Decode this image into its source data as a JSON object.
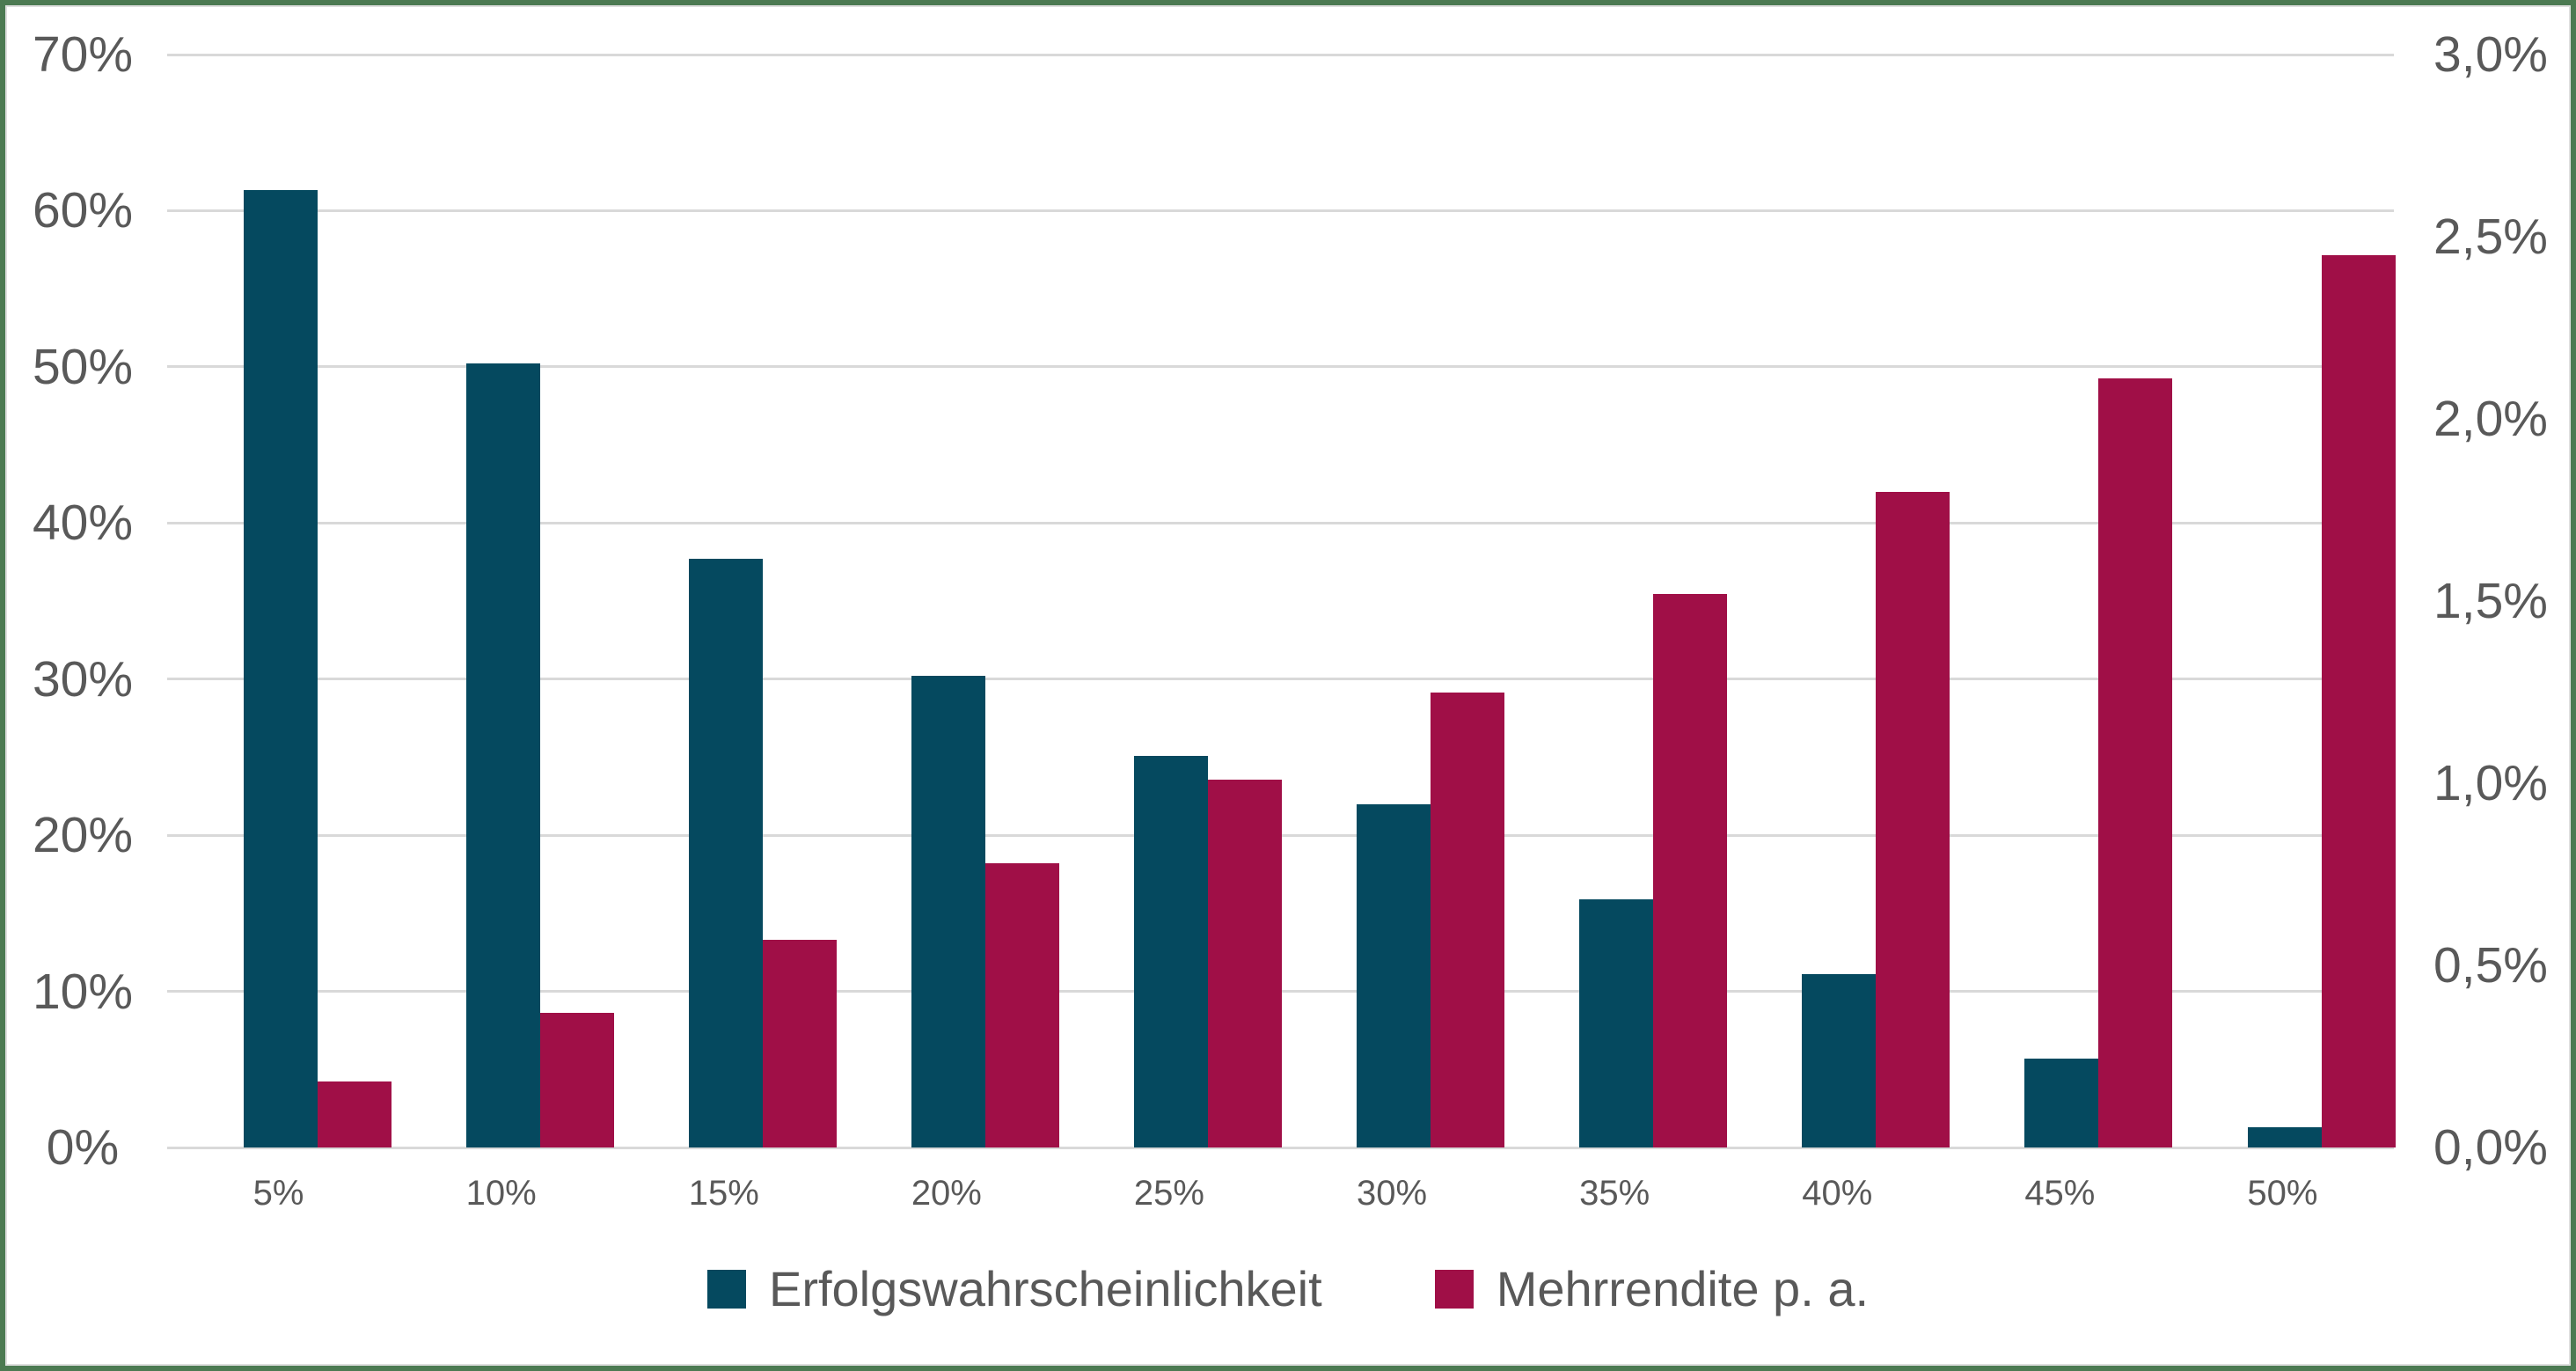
{
  "colors": {
    "series_blue": "#05495F",
    "series_red": "#A00F47",
    "frame_green": "#4C7A52",
    "gridline": "#D9D9D9",
    "axis_text": "#595959",
    "background": "#FFFFFF"
  },
  "chart_data": {
    "type": "bar",
    "title": "",
    "xlabel": "",
    "ylabel_left": "",
    "ylabel_right": "",
    "categories": [
      "5%",
      "10%",
      "15%",
      "20%",
      "25%",
      "30%",
      "35%",
      "40%",
      "45%",
      "50%"
    ],
    "series": [
      {
        "name": "Erfolgswahrscheinlichkeit",
        "axis": "left",
        "color": "#05495F",
        "unit": "%",
        "values": [
          61.3,
          50.2,
          37.7,
          30.2,
          25.1,
          22.0,
          15.9,
          11.1,
          5.7,
          1.3
        ]
      },
      {
        "name": "Mehrrendite p. a.",
        "axis": "right",
        "color": "#A00F47",
        "unit": "%",
        "values": [
          0.18,
          0.37,
          0.57,
          0.78,
          1.01,
          1.25,
          1.52,
          1.8,
          2.11,
          2.45
        ]
      }
    ],
    "left_axis": {
      "min": 0,
      "max": 70,
      "step": 10,
      "tick_labels": [
        "0%",
        "10%",
        "20%",
        "30%",
        "40%",
        "50%",
        "60%",
        "70%"
      ]
    },
    "right_axis": {
      "min": 0.0,
      "max": 3.0,
      "step": 0.5,
      "tick_labels": [
        "0,0%",
        "0,5%",
        "1,0%",
        "1,5%",
        "2,0%",
        "2,5%",
        "3,0%"
      ]
    },
    "grid": true,
    "legend_position": "bottom"
  },
  "legend": {
    "items": [
      {
        "label": "Erfolgswahrscheinlichkeit",
        "color": "#05495F"
      },
      {
        "label": "Mehrrendite p. a.",
        "color": "#A00F47"
      }
    ]
  }
}
